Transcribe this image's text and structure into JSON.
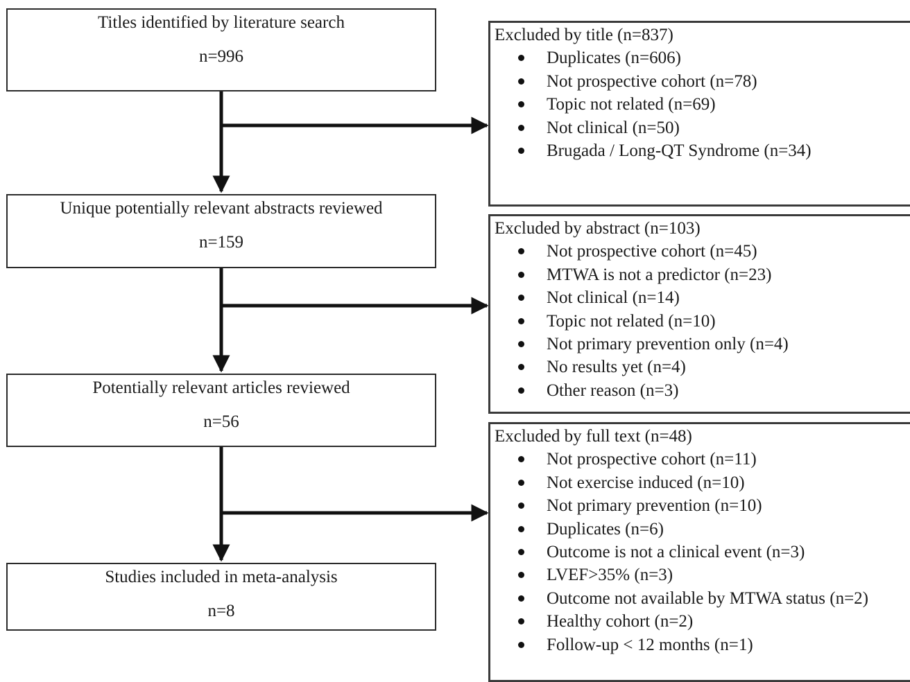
{
  "stages": [
    {
      "title": "Titles identified by literature search",
      "count": "n=996"
    },
    {
      "title": "Unique potentially relevant abstracts reviewed",
      "count": "n=159"
    },
    {
      "title": "Potentially relevant articles reviewed",
      "count": "n=56"
    },
    {
      "title": "Studies included in meta-analysis",
      "count": "n=8"
    }
  ],
  "exclusions": [
    {
      "title": "Excluded by title  (n=837)",
      "items": [
        "Duplicates (n=606)",
        "Not prospective cohort (n=78)",
        "Topic not related (n=69)",
        "Not clinical (n=50)",
        "Brugada / Long-QT Syndrome (n=34)"
      ]
    },
    {
      "title": "Excluded by abstract  (n=103)",
      "items": [
        "Not prospective cohort (n=45)",
        "MTWA is not a predictor (n=23)",
        "Not clinical (n=14)",
        "Topic not related (n=10)",
        "Not primary prevention only (n=4)",
        "No results yet (n=4)",
        "Other reason (n=3)"
      ]
    },
    {
      "title": "Excluded by full text  (n=48)",
      "items": [
        "Not prospective cohort (n=11)",
        "Not exercise induced (n=10)",
        "Not primary prevention (n=10)",
        "Duplicates (n=6)",
        "Outcome is not a clinical event (n=3)",
        "LVEF>35% (n=3)",
        "Outcome not available by MTWA status (n=2)",
        "Healthy cohort (n=2)",
        "Follow-up < 12 months (n=1)"
      ]
    }
  ]
}
